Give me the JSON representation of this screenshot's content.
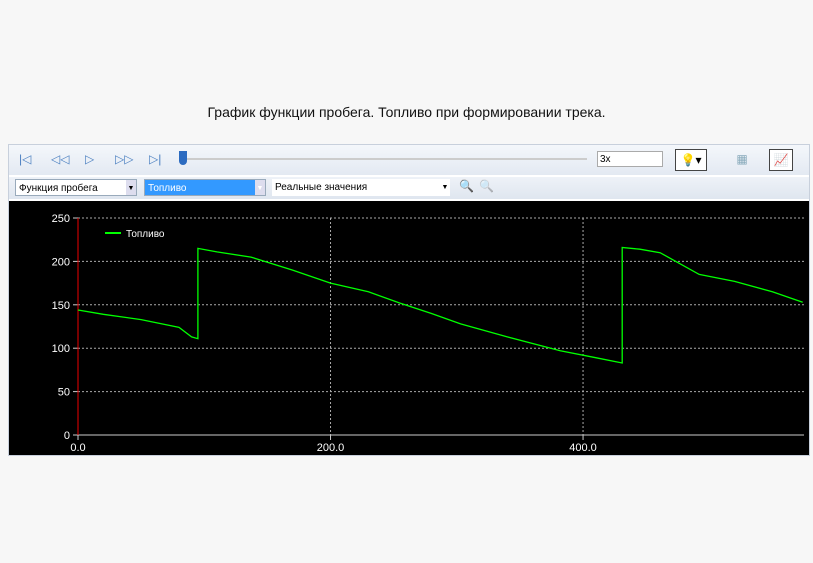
{
  "title": "График функции пробега. Топливо при формировании трека.",
  "toolbar": {
    "speed": "3x",
    "function_select": "Функция пробега",
    "param_select": "Топливо",
    "mode_select": "Реальные значения",
    "icons": [
      "first-icon",
      "rewind-icon",
      "play-icon",
      "fast-forward-icon",
      "last-icon",
      "lightbulb-icon",
      "table-icon",
      "chart-icon",
      "zoom-in-icon",
      "zoom-out-icon"
    ]
  },
  "chart_data": {
    "type": "line",
    "title": "",
    "xlabel": "",
    "ylabel": "",
    "xlim": [
      0,
      575
    ],
    "ylim": [
      0,
      250
    ],
    "xticks": [
      "0.0",
      "200.0",
      "400.0"
    ],
    "yticks": [
      "0",
      "50",
      "100",
      "150",
      "200",
      "250"
    ],
    "grid": true,
    "legend": "top-left",
    "series": [
      {
        "name": "Топливо",
        "color": "#00ff00",
        "x": [
          0,
          20,
          50,
          80,
          90,
          95,
          95,
          110,
          137,
          170,
          200,
          230,
          255,
          280,
          303,
          340,
          382,
          410,
          431,
          431,
          445,
          461,
          492,
          520,
          550,
          574
        ],
        "y": [
          144,
          139,
          133,
          124,
          113,
          111,
          215,
          211,
          205,
          190,
          175,
          165,
          152,
          140,
          128,
          113,
          97,
          89,
          83,
          216,
          214,
          210,
          185,
          177,
          165,
          153
        ]
      }
    ]
  }
}
